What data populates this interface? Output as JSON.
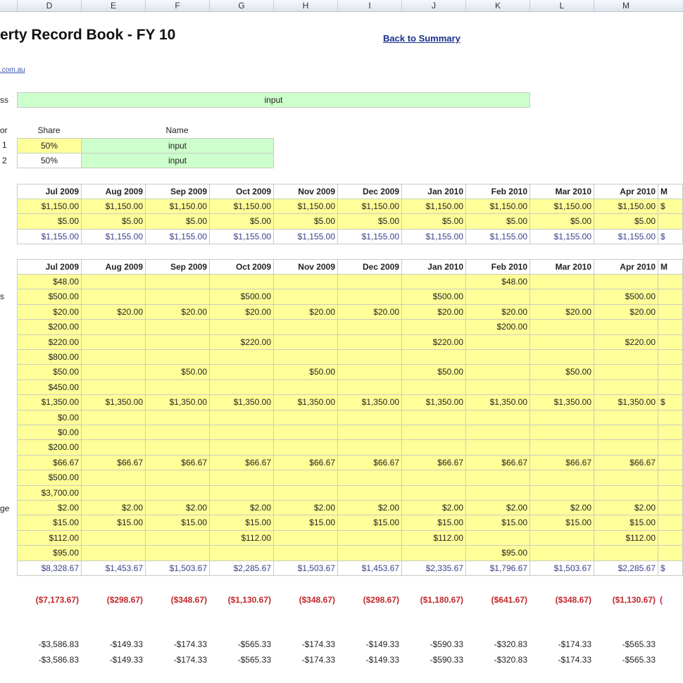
{
  "columns": [
    "D",
    "E",
    "F",
    "G",
    "H",
    "I",
    "J",
    "K",
    "L",
    "M"
  ],
  "title": "erty Record Book - FY 10",
  "back_link": "Back to Summary",
  "website_link": ".com.au",
  "address": {
    "label": "ss",
    "value": "input"
  },
  "owners": {
    "label": "or",
    "share_header": "Share",
    "name_header": "Name",
    "rows": [
      {
        "num": "1",
        "share": "50%",
        "name": "input"
      },
      {
        "num": "2",
        "share": "50%",
        "name": "input"
      }
    ]
  },
  "months": [
    "Jul 2009",
    "Aug 2009",
    "Sep 2009",
    "Oct 2009",
    "Nov 2009",
    "Dec 2009",
    "Jan 2010",
    "Feb 2010",
    "Mar 2010",
    "Apr 2010"
  ],
  "next_month_partial": "M",
  "income": {
    "rows": [
      {
        "values": [
          "$1,150.00",
          "$1,150.00",
          "$1,150.00",
          "$1,150.00",
          "$1,150.00",
          "$1,150.00",
          "$1,150.00",
          "$1,150.00",
          "$1,150.00",
          "$1,150.00"
        ],
        "next": "$"
      },
      {
        "values": [
          "$5.00",
          "$5.00",
          "$5.00",
          "$5.00",
          "$5.00",
          "$5.00",
          "$5.00",
          "$5.00",
          "$5.00",
          "$5.00"
        ],
        "next": ""
      }
    ],
    "total": {
      "values": [
        "$1,155.00",
        "$1,155.00",
        "$1,155.00",
        "$1,155.00",
        "$1,155.00",
        "$1,155.00",
        "$1,155.00",
        "$1,155.00",
        "$1,155.00",
        "$1,155.00"
      ],
      "next": "$"
    }
  },
  "expense_labels": {
    "1": "s",
    "15": "ge"
  },
  "expenses": {
    "rows": [
      {
        "values": [
          "$48.00",
          "",
          "",
          "",
          "",
          "",
          "",
          "$48.00",
          "",
          ""
        ],
        "next": ""
      },
      {
        "values": [
          "$500.00",
          "",
          "",
          "$500.00",
          "",
          "",
          "$500.00",
          "",
          "",
          "$500.00"
        ],
        "next": ""
      },
      {
        "values": [
          "$20.00",
          "$20.00",
          "$20.00",
          "$20.00",
          "$20.00",
          "$20.00",
          "$20.00",
          "$20.00",
          "$20.00",
          "$20.00"
        ],
        "next": ""
      },
      {
        "values": [
          "$200.00",
          "",
          "",
          "",
          "",
          "",
          "",
          "$200.00",
          "",
          ""
        ],
        "next": ""
      },
      {
        "values": [
          "$220.00",
          "",
          "",
          "$220.00",
          "",
          "",
          "$220.00",
          "",
          "",
          "$220.00"
        ],
        "next": ""
      },
      {
        "values": [
          "$800.00",
          "",
          "",
          "",
          "",
          "",
          "",
          "",
          "",
          ""
        ],
        "next": ""
      },
      {
        "values": [
          "$50.00",
          "",
          "$50.00",
          "",
          "$50.00",
          "",
          "$50.00",
          "",
          "$50.00",
          ""
        ],
        "next": ""
      },
      {
        "values": [
          "$450.00",
          "",
          "",
          "",
          "",
          "",
          "",
          "",
          "",
          ""
        ],
        "next": ""
      },
      {
        "values": [
          "$1,350.00",
          "$1,350.00",
          "$1,350.00",
          "$1,350.00",
          "$1,350.00",
          "$1,350.00",
          "$1,350.00",
          "$1,350.00",
          "$1,350.00",
          "$1,350.00"
        ],
        "next": "$"
      },
      {
        "values": [
          "$0.00",
          "",
          "",
          "",
          "",
          "",
          "",
          "",
          "",
          ""
        ],
        "next": ""
      },
      {
        "values": [
          "$0.00",
          "",
          "",
          "",
          "",
          "",
          "",
          "",
          "",
          ""
        ],
        "next": ""
      },
      {
        "values": [
          "$200.00",
          "",
          "",
          "",
          "",
          "",
          "",
          "",
          "",
          ""
        ],
        "next": ""
      },
      {
        "values": [
          "$66.67",
          "$66.67",
          "$66.67",
          "$66.67",
          "$66.67",
          "$66.67",
          "$66.67",
          "$66.67",
          "$66.67",
          "$66.67"
        ],
        "next": ""
      },
      {
        "values": [
          "$500.00",
          "",
          "",
          "",
          "",
          "",
          "",
          "",
          "",
          ""
        ],
        "next": ""
      },
      {
        "values": [
          "$3,700.00",
          "",
          "",
          "",
          "",
          "",
          "",
          "",
          "",
          ""
        ],
        "next": ""
      },
      {
        "values": [
          "$2.00",
          "$2.00",
          "$2.00",
          "$2.00",
          "$2.00",
          "$2.00",
          "$2.00",
          "$2.00",
          "$2.00",
          "$2.00"
        ],
        "next": ""
      },
      {
        "values": [
          "$15.00",
          "$15.00",
          "$15.00",
          "$15.00",
          "$15.00",
          "$15.00",
          "$15.00",
          "$15.00",
          "$15.00",
          "$15.00"
        ],
        "next": ""
      },
      {
        "values": [
          "$112.00",
          "",
          "",
          "$112.00",
          "",
          "",
          "$112.00",
          "",
          "",
          "$112.00"
        ],
        "next": ""
      },
      {
        "values": [
          "$95.00",
          "",
          "",
          "",
          "",
          "",
          "",
          "$95.00",
          "",
          ""
        ],
        "next": ""
      }
    ],
    "total": {
      "values": [
        "$8,328.67",
        "$1,453.67",
        "$1,503.67",
        "$2,285.67",
        "$1,503.67",
        "$1,453.67",
        "$2,335.67",
        "$1,796.67",
        "$1,503.67",
        "$2,285.67"
      ],
      "next": "$"
    }
  },
  "net": {
    "values": [
      "($7,173.67)",
      "($298.67)",
      "($348.67)",
      "($1,130.67)",
      "($348.67)",
      "($298.67)",
      "($1,180.67)",
      "($641.67)",
      "($348.67)",
      "($1,130.67)"
    ],
    "next": "("
  },
  "owner_shares": [
    [
      "-$3,586.83",
      "-$149.33",
      "-$174.33",
      "-$565.33",
      "-$174.33",
      "-$149.33",
      "-$590.33",
      "-$320.83",
      "-$174.33",
      "-$565.33"
    ],
    [
      "-$3,586.83",
      "-$149.33",
      "-$174.33",
      "-$565.33",
      "-$174.33",
      "-$149.33",
      "-$590.33",
      "-$320.83",
      "-$174.33",
      "-$565.33"
    ]
  ],
  "colors": {
    "input_yellow": "#ffff99",
    "input_green": "#ccffcc",
    "negative": "#c0272d",
    "total": "#3a3f8c",
    "link": "#1a2f8a"
  }
}
